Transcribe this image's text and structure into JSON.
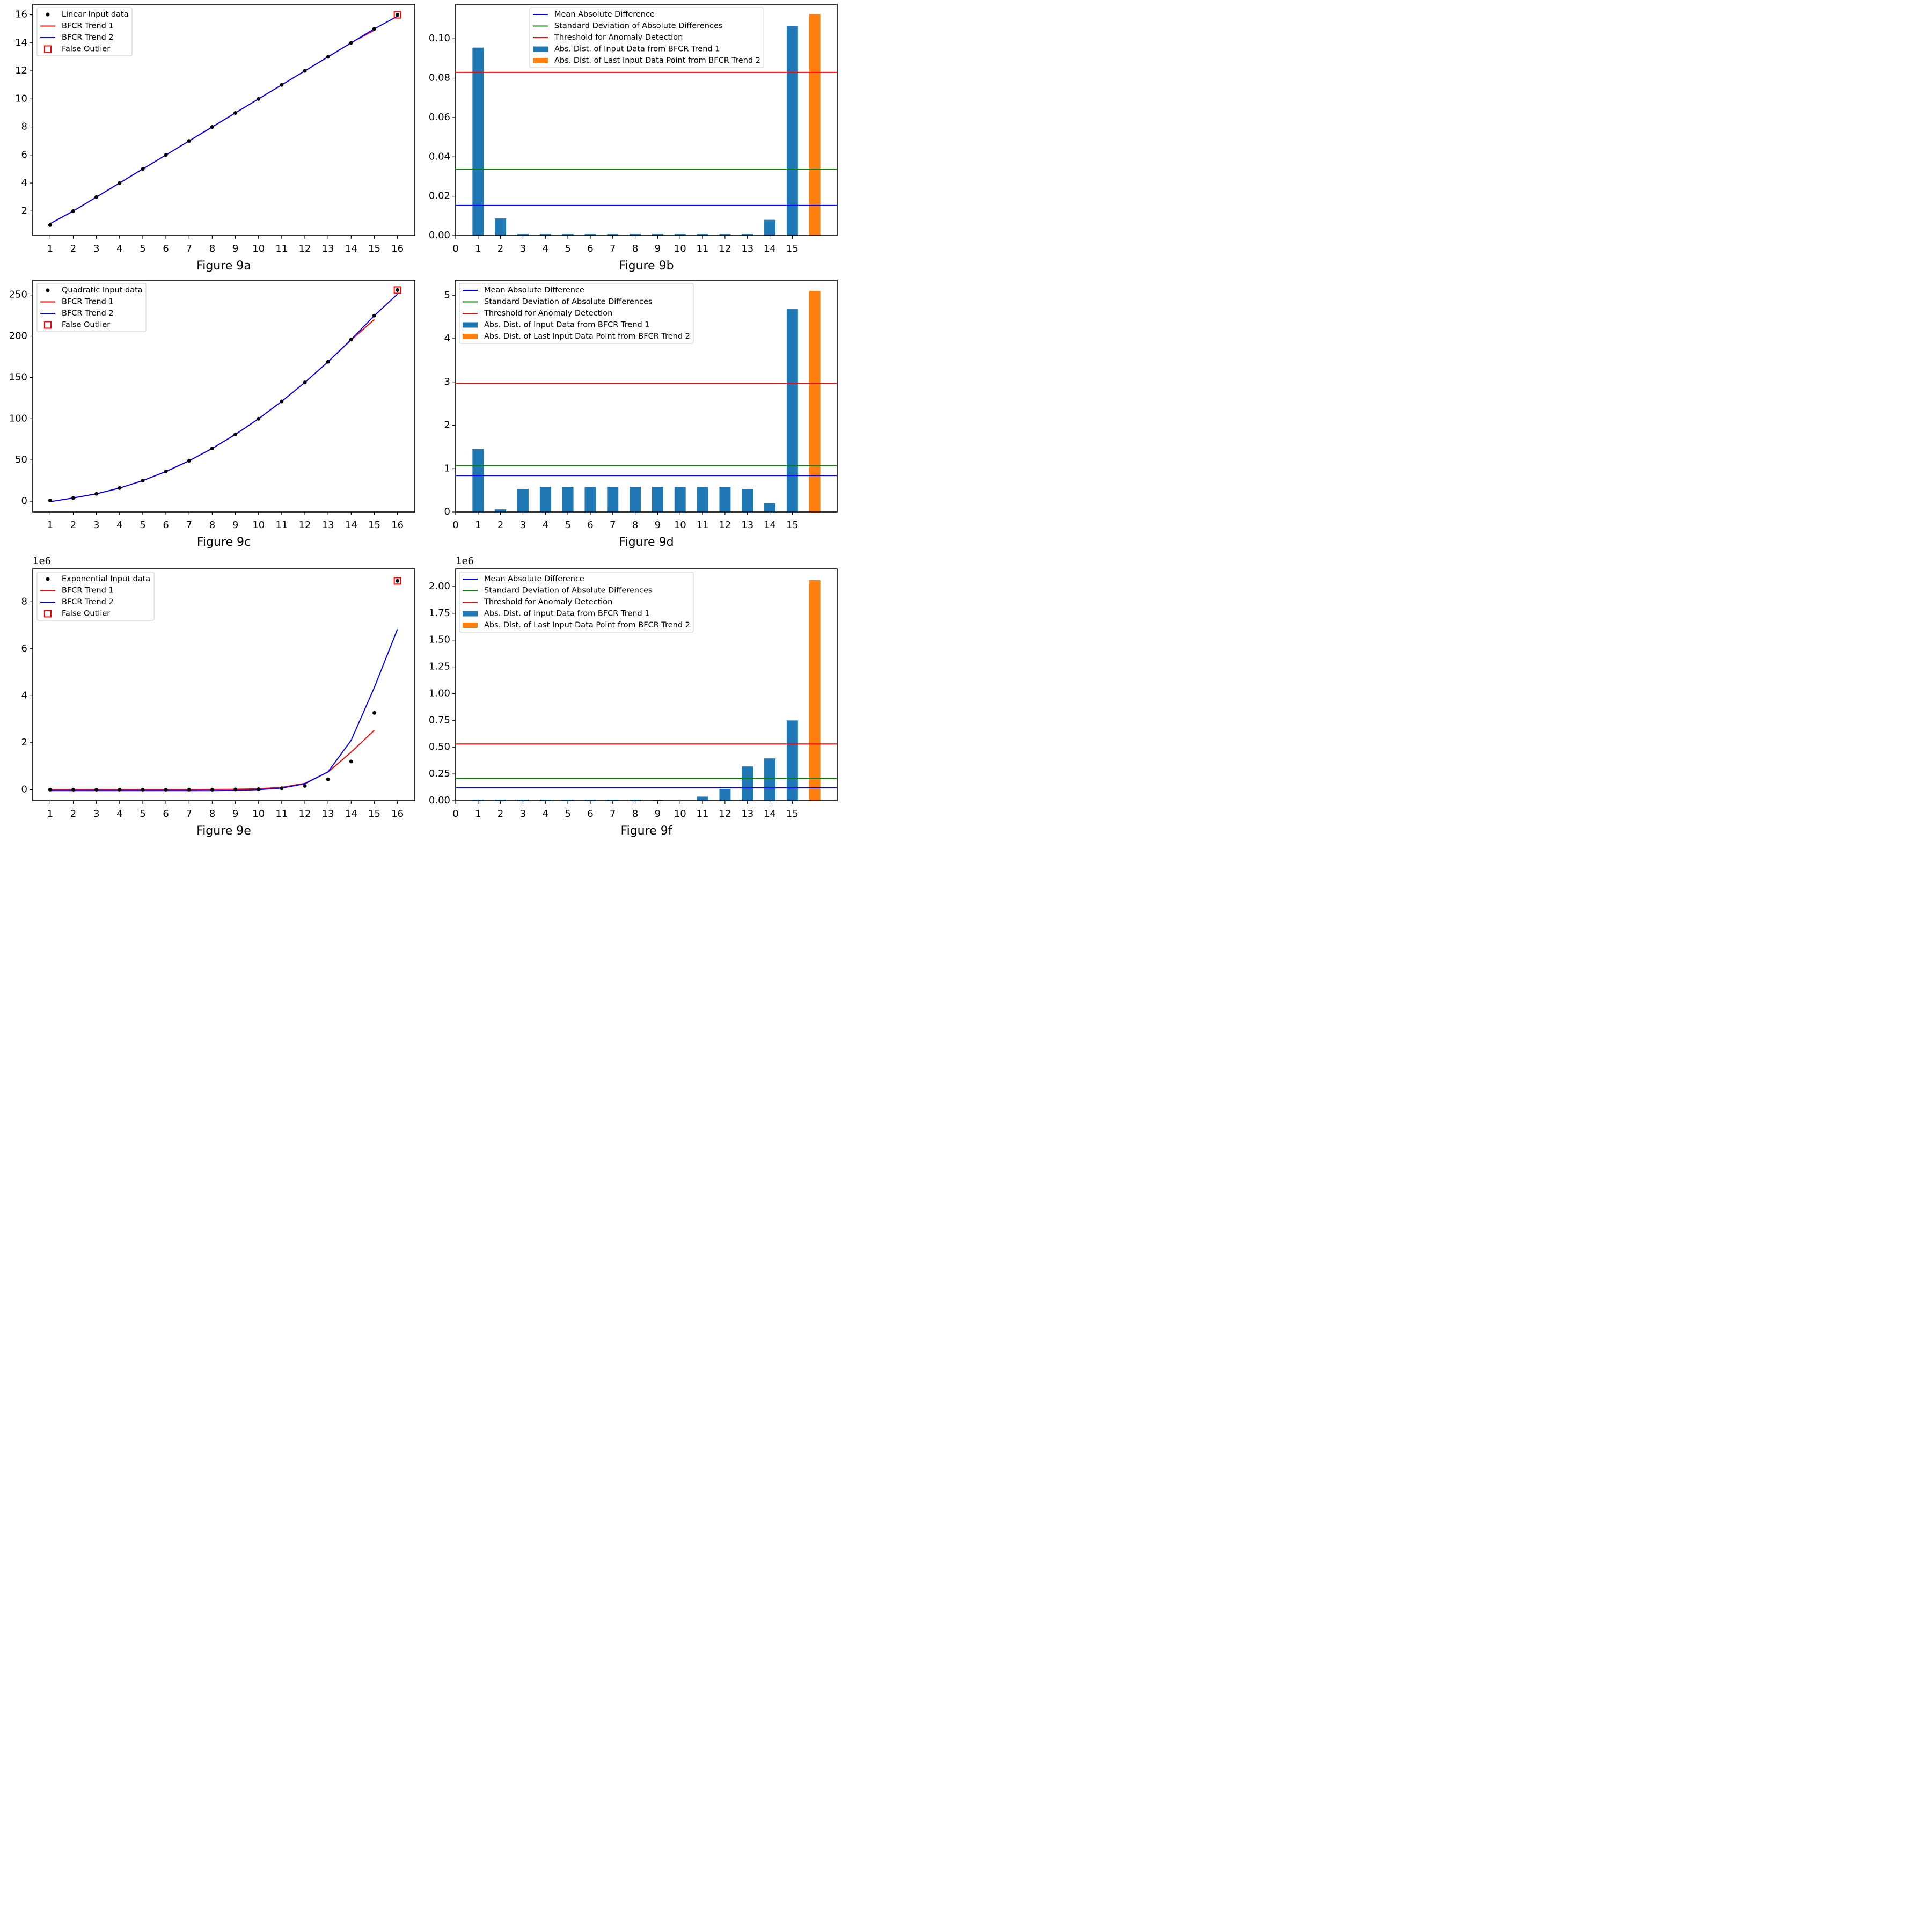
{
  "chart_data": [
    {
      "id": "9a",
      "type": "line",
      "caption": "Figure 9a",
      "x_ticks": [
        1,
        2,
        3,
        4,
        5,
        6,
        7,
        8,
        9,
        10,
        11,
        12,
        13,
        14,
        15,
        16
      ],
      "y_ticks": [
        2,
        4,
        6,
        8,
        10,
        12,
        14,
        16
      ],
      "y_tick_labels": [
        "2",
        "4",
        "6",
        "8",
        "10",
        "12",
        "14",
        "16"
      ],
      "xlim": [
        0.25,
        16.75
      ],
      "ylim": [
        0.25,
        16.75
      ],
      "offset_label": "",
      "legend": [
        "Linear Input data",
        "BFCR Trend 1",
        "BFCR Trend 2",
        "False Outlier"
      ],
      "input_x": [
        1,
        2,
        3,
        4,
        5,
        6,
        7,
        8,
        9,
        10,
        11,
        12,
        13,
        14,
        15,
        16
      ],
      "input_y": [
        1,
        2,
        3,
        4,
        5,
        6,
        7,
        8,
        9,
        10,
        11,
        12,
        13,
        14,
        15,
        16
      ],
      "trend1_x": [
        1,
        2,
        3,
        4,
        5,
        6,
        7,
        8,
        9,
        10,
        11,
        12,
        13,
        14,
        15
      ],
      "trend1_y": [
        1.1,
        2,
        3,
        4,
        5,
        6,
        7,
        8,
        9,
        10,
        11,
        12,
        13,
        14,
        14.9
      ],
      "trend2_x": [
        1,
        2,
        3,
        4,
        5,
        6,
        7,
        8,
        9,
        10,
        11,
        12,
        13,
        14,
        15,
        16
      ],
      "trend2_y": [
        1.1,
        2,
        3,
        4,
        5,
        6,
        7,
        8,
        9,
        10,
        11,
        12,
        13,
        14,
        15,
        15.9
      ],
      "outlier": [
        16,
        16
      ]
    },
    {
      "id": "9b",
      "type": "bar",
      "caption": "Figure 9b",
      "x_ticks": [
        0,
        1,
        2,
        3,
        4,
        5,
        6,
        7,
        8,
        9,
        10,
        11,
        12,
        13,
        14,
        15
      ],
      "y_ticks": [
        0,
        0.02,
        0.04,
        0.06,
        0.08,
        0.1
      ],
      "y_tick_labels": [
        "0.00",
        "0.02",
        "0.04",
        "0.06",
        "0.08",
        "0.10"
      ],
      "xlim": [
        0,
        17
      ],
      "ylim": [
        0,
        0.1175
      ],
      "offset_label": "",
      "legend": [
        "Mean Absolute Difference",
        "Standard Deviation of Absolute Differences",
        "Threshold for Anomaly Detection",
        "Abs. Dist. of Input Data from BFCR Trend 1",
        "Abs. Dist. of Last Input Data Point from BFCR Trend 2"
      ],
      "bar_x": [
        1,
        2,
        3,
        4,
        5,
        6,
        7,
        8,
        9,
        10,
        11,
        12,
        13,
        14,
        15
      ],
      "bar_values": [
        0.0955,
        0.0087,
        0.0008,
        0.0008,
        0.0008,
        0.0008,
        0.0008,
        0.0008,
        0.0008,
        0.0008,
        0.0008,
        0.0008,
        0.0008,
        0.008,
        0.1065
      ],
      "last_x": 16,
      "last_value": 0.1125,
      "mean": 0.0153,
      "std": 0.0338,
      "threshold": 0.0829
    },
    {
      "id": "9c",
      "type": "line",
      "caption": "Figure 9c",
      "x_ticks": [
        1,
        2,
        3,
        4,
        5,
        6,
        7,
        8,
        9,
        10,
        11,
        12,
        13,
        14,
        15,
        16
      ],
      "y_ticks": [
        0,
        50,
        100,
        150,
        200,
        250
      ],
      "y_tick_labels": [
        "0",
        "50",
        "100",
        "150",
        "200",
        "250"
      ],
      "xlim": [
        0.25,
        16.75
      ],
      "ylim": [
        -13,
        268
      ],
      "offset_label": "",
      "legend": [
        "Quadratic Input data",
        "BFCR Trend 1",
        "BFCR Trend 2",
        "False Outlier"
      ],
      "input_x": [
        1,
        2,
        3,
        4,
        5,
        6,
        7,
        8,
        9,
        10,
        11,
        12,
        13,
        14,
        15,
        16
      ],
      "input_y": [
        1,
        4,
        9,
        16,
        25,
        36,
        49,
        64,
        81,
        100,
        121,
        144,
        169,
        196,
        225,
        256
      ],
      "trend1_x": [
        1,
        2,
        3,
        4,
        5,
        6,
        7,
        8,
        9,
        10,
        11,
        12,
        13,
        14,
        15
      ],
      "trend1_y": [
        -0.5,
        4,
        9,
        16,
        25,
        36,
        49,
        64,
        81,
        100,
        121,
        144,
        169,
        195.5,
        220.3
      ],
      "trend2_x": [
        1,
        2,
        3,
        4,
        5,
        6,
        7,
        8,
        9,
        10,
        11,
        12,
        13,
        14,
        15,
        16
      ],
      "trend2_y": [
        -0.5,
        4,
        9,
        16,
        25,
        36,
        49,
        64,
        81,
        100,
        121,
        144,
        169,
        196,
        225,
        251
      ],
      "outlier": [
        16,
        256
      ]
    },
    {
      "id": "9d",
      "type": "bar",
      "caption": "Figure 9d",
      "x_ticks": [
        0,
        1,
        2,
        3,
        4,
        5,
        6,
        7,
        8,
        9,
        10,
        11,
        12,
        13,
        14,
        15
      ],
      "y_ticks": [
        0,
        1,
        2,
        3,
        4,
        5
      ],
      "y_tick_labels": [
        "0",
        "1",
        "2",
        "3",
        "4",
        "5"
      ],
      "xlim": [
        0,
        17
      ],
      "ylim": [
        0,
        5.35
      ],
      "offset_label": "",
      "legend": [
        "Mean Absolute Difference",
        "Standard Deviation of Absolute Differences",
        "Threshold for Anomaly Detection",
        "Abs. Dist. of Input Data from BFCR Trend 1",
        "Abs. Dist. of Last Input Data Point from BFCR Trend 2"
      ],
      "bar_x": [
        1,
        2,
        3,
        4,
        5,
        6,
        7,
        8,
        9,
        10,
        11,
        12,
        13,
        14,
        15
      ],
      "bar_values": [
        1.45,
        0.06,
        0.53,
        0.58,
        0.58,
        0.58,
        0.58,
        0.58,
        0.58,
        0.58,
        0.58,
        0.58,
        0.53,
        0.2,
        4.68
      ],
      "last_x": 16,
      "last_value": 5.1,
      "mean": 0.84,
      "std": 1.07,
      "threshold": 2.97
    },
    {
      "id": "9e",
      "type": "line",
      "caption": "Figure 9e",
      "x_ticks": [
        1,
        2,
        3,
        4,
        5,
        6,
        7,
        8,
        9,
        10,
        11,
        12,
        13,
        14,
        15,
        16
      ],
      "y_ticks": [
        0,
        2,
        4,
        6,
        8
      ],
      "y_tick_labels": [
        "0",
        "2",
        "4",
        "6",
        "8"
      ],
      "xlim": [
        0.25,
        16.75
      ],
      "ylim": [
        -0.47,
        9.4
      ],
      "offset_label": "1e6",
      "legend": [
        "Exponential Input data",
        "BFCR Trend 1",
        "BFCR Trend 2",
        "False Outlier"
      ],
      "input_x": [
        1,
        2,
        3,
        4,
        5,
        6,
        7,
        8,
        9,
        10,
        11,
        12,
        13,
        14,
        15,
        16
      ],
      "input_y": [
        0,
        0,
        0,
        0,
        0,
        0,
        0,
        0,
        0.01,
        0.02,
        0.06,
        0.16,
        0.44,
        1.2,
        3.27,
        8.89
      ],
      "trend1_x": [
        1,
        2,
        3,
        4,
        5,
        6,
        7,
        8,
        9,
        10,
        11,
        12,
        13,
        14,
        15
      ],
      "trend1_y": [
        0,
        0,
        0,
        0,
        0,
        0,
        0,
        0.01,
        0.02,
        0.04,
        0.1,
        0.27,
        0.75,
        1.6,
        2.53
      ],
      "trend2_x": [
        1,
        2,
        3,
        4,
        5,
        6,
        7,
        8,
        9,
        10,
        11,
        12,
        13,
        14,
        15,
        16
      ],
      "trend2_y": [
        -0.04,
        -0.04,
        -0.04,
        -0.04,
        -0.04,
        -0.04,
        -0.04,
        -0.04,
        -0.03,
        0,
        0.07,
        0.25,
        0.76,
        2.1,
        4.35,
        6.83
      ],
      "outlier": [
        16,
        8.89
      ]
    },
    {
      "id": "9f",
      "type": "bar",
      "caption": "Figure 9f",
      "x_ticks": [
        0,
        1,
        2,
        3,
        4,
        5,
        6,
        7,
        8,
        9,
        10,
        11,
        12,
        13,
        14,
        15
      ],
      "y_ticks": [
        0,
        0.25,
        0.5,
        0.75,
        1.0,
        1.25,
        1.5,
        1.75,
        2.0
      ],
      "y_tick_labels": [
        "0.00",
        "0.25",
        "0.50",
        "0.75",
        "1.00",
        "1.25",
        "1.50",
        "1.75",
        "2.00"
      ],
      "xlim": [
        0,
        17
      ],
      "ylim": [
        0,
        2.165
      ],
      "offset_label": "1e6",
      "legend": [
        "Mean Absolute Difference",
        "Standard Deviation of Absolute Differences",
        "Threshold for Anomaly Detection",
        "Abs. Dist. of Input Data from BFCR Trend 1",
        "Abs. Dist. of Last Input Data Point from BFCR Trend 2"
      ],
      "bar_x": [
        1,
        2,
        3,
        4,
        5,
        6,
        7,
        8,
        9,
        10,
        11,
        12,
        13,
        14,
        15
      ],
      "bar_values": [
        0.01,
        0.01,
        0.01,
        0.01,
        0.01,
        0.01,
        0.01,
        0.01,
        0.005,
        0.002,
        0.038,
        0.11,
        0.32,
        0.395,
        0.75
      ],
      "last_x": 16,
      "last_value": 2.06,
      "mean": 0.12,
      "std": 0.21,
      "threshold": 0.53
    }
  ],
  "colors": {
    "trend1": "#ff0000",
    "trend2": "#0000ff",
    "point": "#000000",
    "outlier": "#ff0000",
    "mean_line": "#0000ff",
    "std_line": "#008000",
    "threshold_line": "#ff0000",
    "bar": "#1f77b4",
    "last_bar": "#ff7f0e"
  }
}
